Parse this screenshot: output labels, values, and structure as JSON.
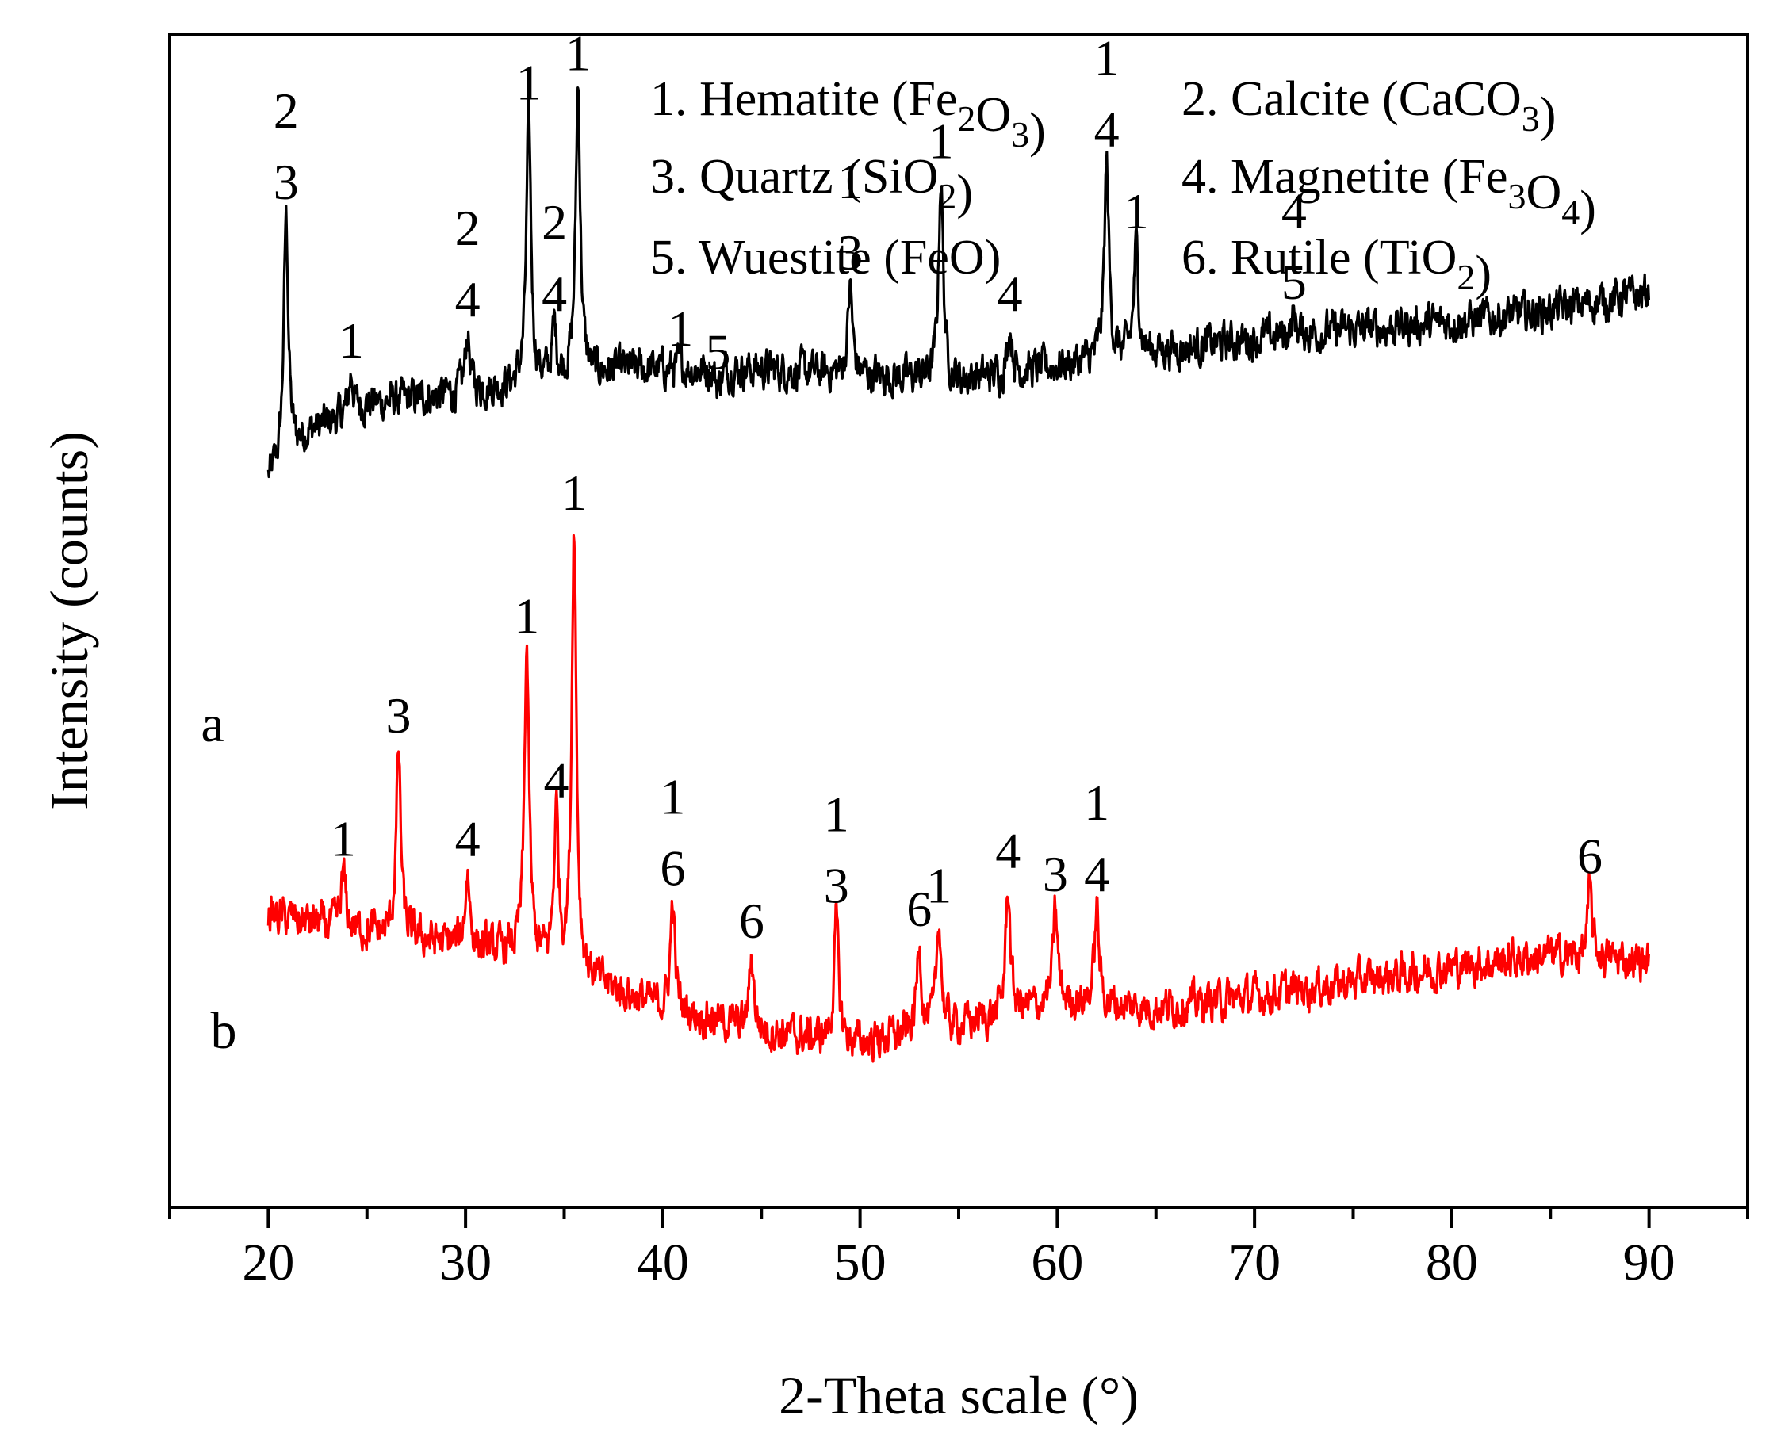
{
  "chart_data": {
    "type": "line",
    "title": "",
    "xlabel": "2-Theta scale (°)",
    "ylabel": "Intensity (counts)",
    "xlim": [
      15,
      95
    ],
    "x_ticks": [
      20,
      30,
      40,
      50,
      60,
      70,
      80,
      90
    ],
    "x_tick_labels": [
      "20",
      "30",
      "40",
      "50",
      "60",
      "70",
      "80",
      "90"
    ],
    "ylim": [
      0,
      100
    ],
    "y_ticks_visible": false,
    "grid": false,
    "legend": {
      "position": "top-right",
      "entries": [
        {
          "num": "1. ",
          "name": "Hematite (",
          "formula": [
            [
              "Fe",
              ""
            ],
            [
              "2",
              "sub"
            ],
            [
              "O",
              ""
            ],
            [
              "3",
              "sub"
            ]
          ],
          "close": ")"
        },
        {
          "num": "2. ",
          "name": "Calcite (",
          "formula": [
            [
              "CaCO",
              ""
            ],
            [
              "3",
              "sub"
            ]
          ],
          "close": ")"
        },
        {
          "num": "3. ",
          "name": "Quartz (",
          "formula": [
            [
              "SiO",
              ""
            ],
            [
              "2",
              "sub"
            ]
          ],
          "close": ")"
        },
        {
          "num": "4. ",
          "name": "Magnetite (",
          "formula": [
            [
              "Fe",
              ""
            ],
            [
              "3",
              "sub"
            ],
            [
              "O",
              ""
            ],
            [
              "4",
              "sub"
            ]
          ],
          "close": ")"
        },
        {
          "num": "5. ",
          "name": "Wuestite (",
          "formula": [
            [
              "FeO",
              ""
            ]
          ],
          "close": ")"
        },
        {
          "num": "6. ",
          "name": "Rutile (",
          "formula": [
            [
              "TiO",
              ""
            ],
            [
              "2",
              "sub"
            ]
          ],
          "close": ")"
        }
      ]
    },
    "series": [
      {
        "name": "a",
        "label": "a",
        "color": "#000000",
        "baseline": [
          [
            20,
            62
          ],
          [
            22,
            66
          ],
          [
            25,
            68.5
          ],
          [
            30,
            69.5
          ],
          [
            38,
            71.5
          ],
          [
            45,
            71.5
          ],
          [
            55,
            70.5
          ],
          [
            65,
            73
          ],
          [
            72,
            74.5
          ],
          [
            80,
            75.5
          ],
          [
            85,
            76.5
          ],
          [
            90,
            78
          ]
        ],
        "peaks": [
          {
            "x": 20.9,
            "y": 84.5,
            "labels": [
              "2",
              "3"
            ]
          },
          {
            "x": 24.2,
            "y": 71,
            "labels": [
              "1"
            ]
          },
          {
            "x": 30.1,
            "y": 74.5,
            "labels": [
              "2",
              "4"
            ]
          },
          {
            "x": 33.2,
            "y": 93,
            "labels": [
              "1"
            ]
          },
          {
            "x": 34.5,
            "y": 75,
            "labels": [
              "2",
              "4"
            ]
          },
          {
            "x": 35.7,
            "y": 95.5,
            "labels": [
              "1"
            ]
          },
          {
            "x": 40.9,
            "y": 72,
            "labels": [
              "1"
            ]
          },
          {
            "x": 42.8,
            "y": 70,
            "labels": [
              "5"
            ]
          },
          {
            "x": 49.5,
            "y": 78.5,
            "labels": [
              "1",
              "3"
            ]
          },
          {
            "x": 54.1,
            "y": 88,
            "labels": [
              "1"
            ]
          },
          {
            "x": 57.6,
            "y": 75,
            "labels": [
              "4"
            ]
          },
          {
            "x": 62.5,
            "y": 89,
            "labels": [
              "1",
              "4"
            ]
          },
          {
            "x": 64.0,
            "y": 82,
            "labels": [
              "1"
            ]
          },
          {
            "x": 72.0,
            "y": 76,
            "labels": [
              "4",
              "5"
            ]
          }
        ]
      },
      {
        "name": "b",
        "label": "b",
        "color": "#ff0000",
        "baseline": [
          [
            20,
            25
          ],
          [
            23,
            24
          ],
          [
            27,
            23
          ],
          [
            33,
            21.5
          ],
          [
            40,
            17
          ],
          [
            45,
            15
          ],
          [
            50,
            14
          ],
          [
            55,
            15.5
          ],
          [
            60,
            17.5
          ],
          [
            65,
            17
          ],
          [
            70,
            18
          ],
          [
            80,
            20.5
          ],
          [
            85,
            21.5
          ],
          [
            90,
            21
          ]
        ],
        "peaks": [
          {
            "x": 23.8,
            "y": 28.5,
            "labels": [
              "1"
            ]
          },
          {
            "x": 26.6,
            "y": 39,
            "labels": [
              "3"
            ]
          },
          {
            "x": 30.1,
            "y": 28.5,
            "labels": [
              "4"
            ]
          },
          {
            "x": 33.1,
            "y": 47.5,
            "labels": [
              "1"
            ]
          },
          {
            "x": 34.6,
            "y": 33.5,
            "labels": [
              "4"
            ]
          },
          {
            "x": 35.5,
            "y": 58,
            "labels": [
              "1"
            ]
          },
          {
            "x": 40.5,
            "y": 26,
            "labels": [
              "1",
              "6"
            ]
          },
          {
            "x": 44.5,
            "y": 21.5,
            "labels": [
              "6"
            ]
          },
          {
            "x": 48.8,
            "y": 24.5,
            "labels": [
              "1",
              "3"
            ]
          },
          {
            "x": 53.0,
            "y": 22.5,
            "labels": [
              "6"
            ]
          },
          {
            "x": 54.0,
            "y": 24.5,
            "labels": [
              "1"
            ]
          },
          {
            "x": 57.5,
            "y": 27.5,
            "labels": [
              "4"
            ]
          },
          {
            "x": 59.9,
            "y": 25.5,
            "labels": [
              "3"
            ]
          },
          {
            "x": 62.0,
            "y": 25.5,
            "labels": [
              "1",
              "4"
            ]
          },
          {
            "x": 87.0,
            "y": 27,
            "labels": [
              "6"
            ]
          }
        ]
      }
    ]
  }
}
